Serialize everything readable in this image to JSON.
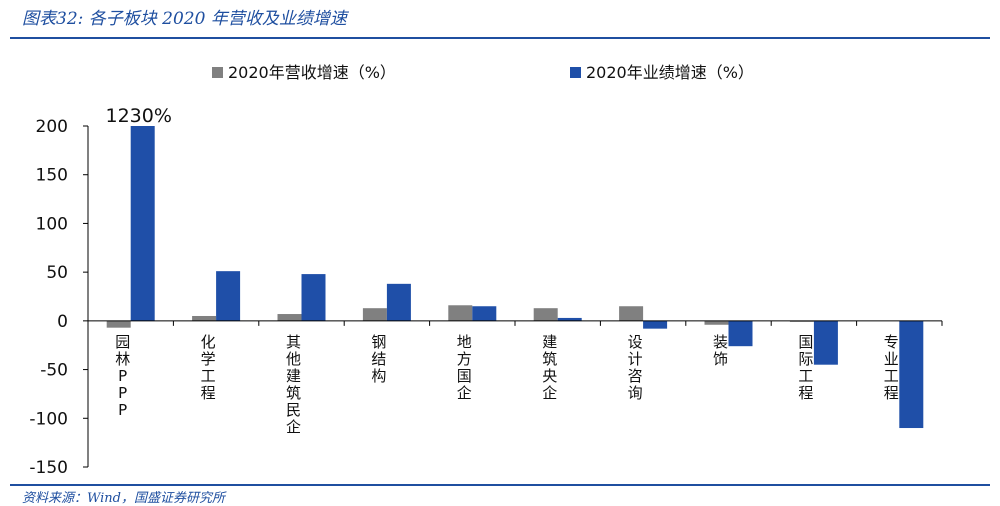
{
  "caption": "图表32:  各子板块 2020 年营收及业绩增速",
  "footer": "资料来源：Wind，国盛证券研究所",
  "colors": {
    "revenue": "#808080",
    "profit": "#1f4fa8",
    "accent": "#1f4fa0"
  },
  "chart_data": {
    "type": "bar",
    "categories": [
      "园林PPP",
      "化学工程",
      "其他建筑民企",
      "钢结构",
      "地方国企",
      "建筑央企",
      "设计咨询",
      "装饰",
      "国际工程",
      "专业工程"
    ],
    "series": [
      {
        "name": "2020年营收增速（%）",
        "values": [
          -7,
          5,
          7,
          13,
          16,
          13,
          15,
          -4,
          -1,
          0
        ]
      },
      {
        "name": "2020年业绩增速（%）",
        "values": [
          200,
          51,
          48,
          38,
          15,
          3,
          -8,
          -26,
          -45,
          -110
        ]
      }
    ],
    "yticks": [
      "200",
      "150",
      "100",
      "50",
      "0",
      "-50",
      "-100",
      "-150"
    ],
    "ylim": [
      -150,
      200
    ],
    "annotations": [
      {
        "text": "1230%",
        "category": "园林PPP",
        "series": "2020年业绩增速（%）"
      }
    ],
    "legend": "top",
    "grid": false
  }
}
